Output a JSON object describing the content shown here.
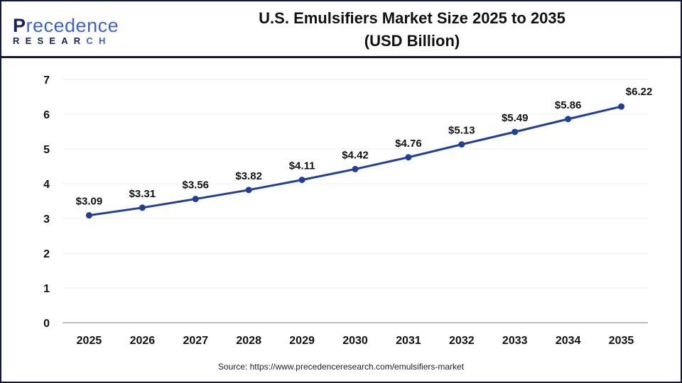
{
  "logo": {
    "line1_a": "P",
    "line1_b": "recedence",
    "line2_a": "RESEAR",
    "line2_b": "CH"
  },
  "header": {
    "title_line1": "U.S. Emulsifiers Market Size 2025 to 2035",
    "title_line2": "(USD Billion)"
  },
  "source": "Source: https://www.precedenceresearch.com/emulsifiers-market",
  "colors": {
    "line": "#1f3f9c",
    "frame": "#141a3c",
    "grid": "#ececec"
  },
  "chart_data": {
    "type": "line",
    "title": "U.S. Emulsifiers Market Size 2025 to 2035 (USD Billion)",
    "categories": [
      "2025",
      "2026",
      "2027",
      "2028",
      "2029",
      "2030",
      "2031",
      "2032",
      "2033",
      "2034",
      "2035"
    ],
    "values": [
      3.09,
      3.31,
      3.56,
      3.82,
      4.11,
      4.42,
      4.76,
      5.13,
      5.49,
      5.86,
      6.22
    ],
    "data_labels": [
      "$3.09",
      "$3.31",
      "$3.56",
      "$3.82",
      "$4.11",
      "$4.42",
      "$4.76",
      "$5.13",
      "$5.49",
      "$5.86",
      "$6.22"
    ],
    "ylim": [
      0,
      7
    ],
    "yticks": [
      "0",
      "1",
      "2",
      "3",
      "4",
      "5",
      "6",
      "7"
    ],
    "grid": true,
    "xlabel": "",
    "ylabel": ""
  }
}
